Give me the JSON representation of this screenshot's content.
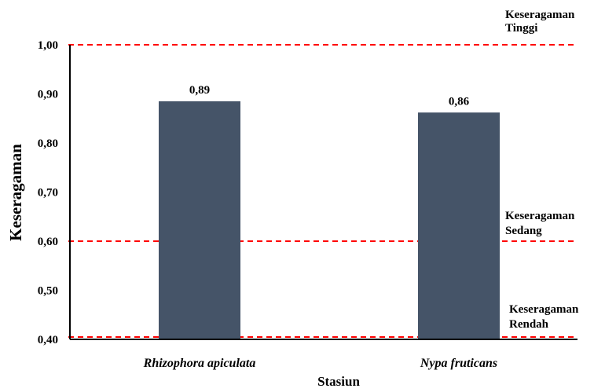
{
  "chart_data": {
    "type": "bar",
    "categories": [
      "Rhizophora apiculata",
      "Nypa fruticans"
    ],
    "values": [
      0.885,
      0.862
    ],
    "data_labels": [
      "0,89",
      "0,86"
    ],
    "xlabel": "Stasiun",
    "ylabel": "Keseragaman",
    "ylim": [
      0.4,
      1.0
    ],
    "yticks": [
      {
        "value": 1.0,
        "label": "1,00"
      },
      {
        "value": 0.9,
        "label": "0,90"
      },
      {
        "value": 0.8,
        "label": "0,80"
      },
      {
        "value": 0.7,
        "label": "0,70"
      },
      {
        "value": 0.6,
        "label": "0,60"
      },
      {
        "value": 0.5,
        "label": "0,50"
      },
      {
        "value": 0.4,
        "label": "0,40"
      }
    ],
    "reference_lines": [
      {
        "value": 1.0,
        "label_line1": "Keseragaman",
        "label_line2": "Tinggi"
      },
      {
        "value": 0.6,
        "label_line1": "Keseragaman",
        "label_line2": "Sedang"
      },
      {
        "value": 0.4,
        "label_line1": "Keseragaman",
        "label_line2": "Rendah"
      }
    ],
    "colors": {
      "bar": "#455468",
      "reference_line": "#ff0000",
      "axis": "#000000"
    },
    "grid": false,
    "legend": "none"
  }
}
